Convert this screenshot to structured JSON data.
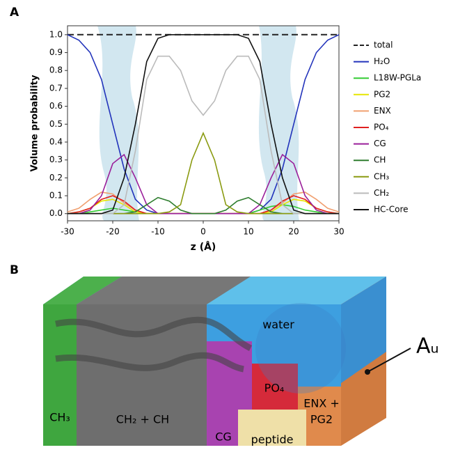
{
  "panel_labels": [
    "A",
    "B"
  ],
  "chart_data": {
    "type": "line",
    "y_label": "Volume probability",
    "x_label": "z (Å)",
    "x": [
      -30,
      -27.5,
      -25,
      -22.5,
      -20,
      -17.5,
      -15,
      -12.5,
      -10,
      -7.5,
      -5,
      -2.5,
      0,
      2.5,
      5,
      7.5,
      10,
      12.5,
      15,
      17.5,
      20,
      22.5,
      25,
      27.5,
      30
    ],
    "xlim": [
      -30,
      30
    ],
    "xticks": [
      -30,
      -20,
      -10,
      0,
      10,
      20,
      30
    ],
    "ylim": [
      -0.04,
      1.05
    ],
    "yticks": [
      {
        "value": 0,
        "label": "0.0"
      },
      0.1,
      0.2,
      0.3,
      0.4,
      0.5,
      0.6,
      0.7,
      0.8,
      0.9,
      {
        "value": 1,
        "label": "1.0"
      }
    ],
    "series": [
      {
        "name": "total",
        "color": "#222222",
        "dashed": true,
        "values": [
          1,
          1,
          1,
          1,
          1,
          1,
          1,
          1,
          1,
          1,
          1,
          1,
          1,
          1,
          1,
          1,
          1,
          1,
          1,
          1,
          1,
          1,
          1,
          1,
          1
        ]
      },
      {
        "name": "H₂O",
        "color": "#2233bb",
        "values": [
          1.0,
          0.97,
          0.9,
          0.75,
          0.5,
          0.25,
          0.08,
          0.02,
          0,
          0,
          0,
          0,
          0,
          0,
          0,
          0,
          0,
          0.02,
          0.08,
          0.25,
          0.5,
          0.75,
          0.9,
          0.97,
          1.0
        ]
      },
      {
        "name": "L18W-PGLa",
        "color": "#33cc33",
        "values": [
          0,
          0,
          0.01,
          0.02,
          0.03,
          0.02,
          0.01,
          0,
          0,
          0,
          0,
          0,
          0,
          0,
          0,
          0,
          0,
          0.02,
          0.04,
          0.05,
          0.04,
          0.02,
          0.01,
          0,
          0
        ]
      },
      {
        "name": "PG2",
        "color": "#e6e600",
        "values": [
          0,
          0.01,
          0.03,
          0.07,
          0.08,
          0.05,
          0.01,
          0,
          0,
          0,
          0,
          0,
          0,
          0,
          0,
          0,
          0,
          0,
          0.01,
          0.05,
          0.08,
          0.07,
          0.03,
          0.01,
          0
        ]
      },
      {
        "name": "ENX",
        "color": "#f0a070",
        "values": [
          0.01,
          0.03,
          0.08,
          0.12,
          0.11,
          0.06,
          0.02,
          0,
          0,
          0,
          0,
          0,
          0,
          0,
          0,
          0,
          0,
          0,
          0.02,
          0.06,
          0.11,
          0.12,
          0.08,
          0.03,
          0.01
        ]
      },
      {
        "name": "PO₄",
        "color": "#e02020",
        "values": [
          0,
          0.01,
          0.03,
          0.08,
          0.1,
          0.07,
          0.02,
          0,
          0,
          0,
          0,
          0,
          0,
          0,
          0,
          0,
          0,
          0,
          0.02,
          0.07,
          0.1,
          0.08,
          0.03,
          0.01,
          0
        ]
      },
      {
        "name": "CG",
        "color": "#9a1f9a",
        "values": [
          0,
          0,
          0.02,
          0.1,
          0.28,
          0.33,
          0.2,
          0.05,
          0,
          0,
          0,
          0,
          0,
          0,
          0,
          0,
          0,
          0.05,
          0.2,
          0.33,
          0.28,
          0.1,
          0.02,
          0,
          0
        ]
      },
      {
        "name": "CH",
        "color": "#2e7d2e",
        "values": [
          0,
          0,
          0,
          0,
          0,
          0,
          0.01,
          0.05,
          0.09,
          0.07,
          0.02,
          0,
          0,
          0,
          0.02,
          0.07,
          0.09,
          0.05,
          0.01,
          0,
          0,
          0,
          0,
          0,
          0
        ]
      },
      {
        "name": "CH₃",
        "color": "#8a9a10",
        "values": [
          0,
          0,
          0,
          0,
          0,
          0,
          0,
          0,
          0,
          0.01,
          0.05,
          0.3,
          0.45,
          0.3,
          0.05,
          0.01,
          0,
          0,
          0,
          0,
          0,
          0,
          0,
          0,
          0
        ]
      },
      {
        "name": "CH₂",
        "color": "#bbbbbb",
        "values": [
          0,
          0,
          0,
          0,
          0,
          0.05,
          0.35,
          0.75,
          0.88,
          0.88,
          0.8,
          0.63,
          0.55,
          0.63,
          0.8,
          0.88,
          0.88,
          0.75,
          0.35,
          0.05,
          0,
          0,
          0,
          0,
          0
        ]
      },
      {
        "name": "HC-Core",
        "color": "#111111",
        "values": [
          0,
          0,
          0,
          0,
          0.02,
          0.2,
          0.5,
          0.85,
          0.98,
          1,
          1,
          1,
          1,
          1,
          1,
          1,
          0.98,
          0.85,
          0.5,
          0.2,
          0.02,
          0,
          0,
          0,
          0
        ]
      }
    ]
  },
  "diagram": {
    "water": "water",
    "ch3": "CH₃",
    "ch2": "CH₂ + CH",
    "cg": "CG",
    "po4": "PO₄",
    "peptide": "peptide",
    "enx": "ENX +",
    "pg2": "PG2",
    "au": "Aᵤ"
  }
}
